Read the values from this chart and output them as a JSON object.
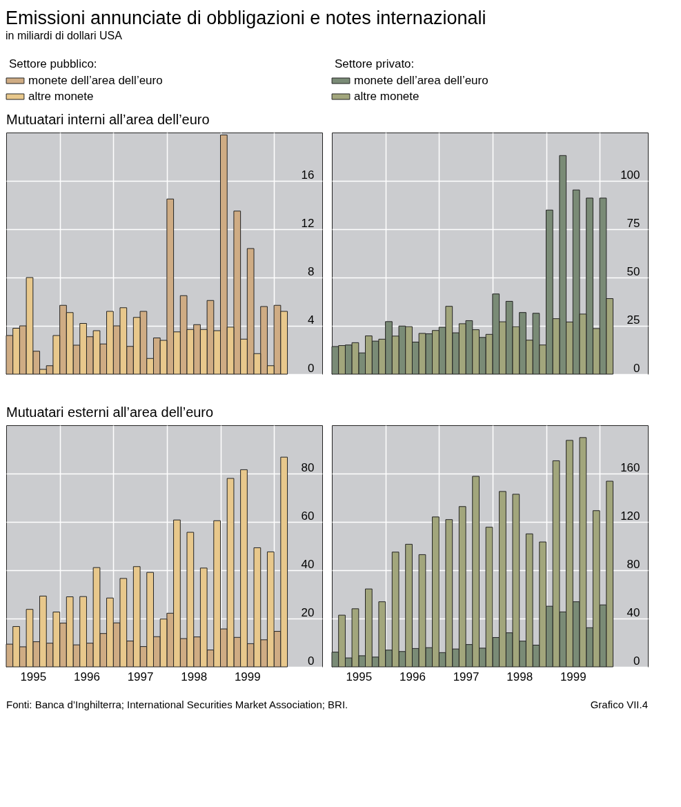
{
  "chart_data": [
    {
      "type": "bar",
      "title": "Emissioni annunciate di obbligazioni e notes internazionali",
      "subtitle": "in miliardi di dollari USA",
      "annotations": [
        "Mutuatari interni all’area dell’euro"
      ],
      "legend_title": "Settore pubblico:",
      "legend": "top left",
      "grid": true,
      "tick_labels": "y",
      "x": [
        1995.125,
        1995.375,
        1995.625,
        1995.875,
        1996.125,
        1996.375,
        1996.625,
        1996.875,
        1997.125,
        1997.375,
        1997.625,
        1997.875,
        1998.125,
        1998.375,
        1998.625,
        1998.875,
        1999.125,
        1999.375,
        1999.625,
        1999.875,
        2000.125
      ],
      "xlim": [
        1995,
        2000.9
      ],
      "xticks": [
        {
          "value": 1996,
          "label": null
        },
        {
          "value": 1997,
          "label": null
        },
        {
          "value": 1998,
          "label": null
        },
        {
          "value": 1999,
          "label": null
        },
        {
          "value": 2000,
          "label": null
        }
      ],
      "ylim": [
        0,
        20
      ],
      "yticks": [
        0,
        4,
        8,
        12,
        16
      ],
      "series": [
        {
          "name": "monete dell’area dell’euro",
          "color": "#cfac84",
          "values": [
            3.2,
            4.0,
            1.9,
            0.7,
            5.7,
            2.4,
            3.1,
            2.5,
            4.0,
            2.3,
            5.2,
            3.0,
            14.5,
            6.5,
            4.1,
            6.1,
            19.8,
            13.5,
            10.4,
            5.6,
            5.7
          ]
        },
        {
          "name": "altre monete",
          "color": "#e8c88c",
          "values": [
            3.8,
            8.0,
            0.4,
            3.2,
            5.1,
            4.2,
            3.6,
            5.2,
            5.5,
            4.7,
            1.3,
            2.8,
            3.5,
            3.7,
            3.7,
            3.6,
            3.9,
            2.9,
            1.7,
            0.7,
            5.2
          ]
        }
      ]
    },
    {
      "type": "bar",
      "legend_title": "Settore privato:",
      "legend": "top left",
      "grid": true,
      "tick_labels": "y",
      "x": [
        1995.125,
        1995.375,
        1995.625,
        1995.875,
        1996.125,
        1996.375,
        1996.625,
        1996.875,
        1997.125,
        1997.375,
        1997.625,
        1997.875,
        1998.125,
        1998.375,
        1998.625,
        1998.875,
        1999.125,
        1999.375,
        1999.625,
        1999.875,
        2000.125
      ],
      "xlim": [
        1995,
        2000.9
      ],
      "xticks": [
        {
          "value": 1996,
          "label": null
        },
        {
          "value": 1997,
          "label": null
        },
        {
          "value": 1998,
          "label": null
        },
        {
          "value": 1999,
          "label": null
        },
        {
          "value": 2000,
          "label": null
        }
      ],
      "ylim": [
        0,
        125
      ],
      "yticks": [
        0,
        25,
        50,
        75,
        100
      ],
      "series": [
        {
          "name": "monete dell’area dell’euro",
          "color": "#7a8b76",
          "values": [
            14.3,
            15.1,
            11.0,
            17.1,
            27.2,
            24.9,
            16.6,
            20.9,
            24.3,
            21.4,
            27.7,
            19.0,
            41.5,
            37.7,
            31.9,
            31.5,
            84.9,
            113.1,
            95.3,
            91.1,
            91.1
          ]
        },
        {
          "name": "altre monete",
          "color": "#a2a67c",
          "values": [
            14.8,
            16.3,
            19.8,
            18.1,
            19.7,
            24.6,
            21.1,
            22.6,
            35.1,
            26.1,
            23.0,
            20.6,
            27.1,
            24.6,
            17.6,
            15.1,
            28.7,
            27.0,
            31.1,
            23.6,
            39.1
          ]
        }
      ]
    },
    {
      "type": "bar",
      "annotations": [
        "Mutuatari esterni all’area dell’euro",
        "Fonti: Banca d’Inghilterra; International Securities Market Association; BRI."
      ],
      "grid": true,
      "x": [
        1995.125,
        1995.375,
        1995.625,
        1995.875,
        1996.125,
        1996.375,
        1996.625,
        1996.875,
        1997.125,
        1997.375,
        1997.625,
        1997.875,
        1998.125,
        1998.375,
        1998.625,
        1998.875,
        1999.125,
        1999.375,
        1999.625,
        1999.875,
        2000.125
      ],
      "xlim": [
        1995,
        2000.9
      ],
      "xticks": [
        {
          "value": 1996,
          "label": null
        },
        {
          "value": 1997,
          "label": null
        },
        {
          "value": 1998,
          "label": null
        },
        {
          "value": 1999,
          "label": null
        },
        {
          "value": 2000,
          "label": null
        },
        {
          "value": 1995.5,
          "label": "1995"
        },
        {
          "value": 1996.5,
          "label": "1996"
        },
        {
          "value": 1997.5,
          "label": "1997"
        },
        {
          "value": 1998.5,
          "label": "1998"
        },
        {
          "value": 1999.5,
          "label": "1999"
        }
      ],
      "ylim": [
        0,
        100
      ],
      "yticks": [
        0,
        20,
        40,
        60,
        80
      ],
      "series": [
        {
          "color": "#cfac84",
          "values": [
            9.4,
            8.3,
            10.4,
            9.8,
            18.1,
            9.1,
            9.8,
            13.8,
            18.2,
            10.7,
            8.4,
            12.5,
            22.2,
            11.7,
            12.4,
            7.0,
            15.7,
            12.2,
            9.6,
            11.2,
            14.7
          ]
        },
        {
          "color": "#e8c88c",
          "values": [
            16.7,
            23.8,
            29.3,
            22.7,
            29.0,
            29.1,
            41.1,
            28.5,
            36.6,
            41.5,
            39.1,
            19.8,
            60.8,
            55.7,
            40.9,
            60.5,
            78.0,
            81.6,
            49.3,
            47.6,
            86.8
          ]
        }
      ]
    },
    {
      "type": "bar",
      "annotations": [
        "Grafico VII.4"
      ],
      "grid": true,
      "x": [
        1995.125,
        1995.375,
        1995.625,
        1995.875,
        1996.125,
        1996.375,
        1996.625,
        1996.875,
        1997.125,
        1997.375,
        1997.625,
        1997.875,
        1998.125,
        1998.375,
        1998.625,
        1998.875,
        1999.125,
        1999.375,
        1999.625,
        1999.875,
        2000.125
      ],
      "xlim": [
        1995,
        2000.9
      ],
      "xticks": [
        {
          "value": 1996,
          "label": null
        },
        {
          "value": 1997,
          "label": null
        },
        {
          "value": 1998,
          "label": null
        },
        {
          "value": 1999,
          "label": null
        },
        {
          "value": 2000,
          "label": null
        },
        {
          "value": 1995.5,
          "label": "1995"
        },
        {
          "value": 1996.5,
          "label": "1996"
        },
        {
          "value": 1997.5,
          "label": "1997"
        },
        {
          "value": 1998.5,
          "label": "1998"
        },
        {
          "value": 1999.5,
          "label": "1999"
        }
      ],
      "ylim": [
        0,
        200
      ],
      "yticks": [
        0,
        40,
        80,
        120,
        160
      ],
      "series": [
        {
          "color": "#7a8b76",
          "values": [
            12.2,
            7.4,
            9.2,
            8.1,
            13.9,
            12.7,
            15.2,
            15.9,
            11.8,
            14.8,
            18.5,
            15.5,
            24.3,
            28.2,
            21.3,
            18.0,
            50.2,
            45.5,
            53.9,
            32.4,
            51.3
          ]
        },
        {
          "color": "#a2a67c",
          "values": [
            42.8,
            48.1,
            64.5,
            53.9,
            95.0,
            101.5,
            92.9,
            124.1,
            121.9,
            132.7,
            157.7,
            115.6,
            145.2,
            142.9,
            110.1,
            103.4,
            170.6,
            187.5,
            189.8,
            129.3,
            153.7
          ]
        }
      ]
    }
  ]
}
